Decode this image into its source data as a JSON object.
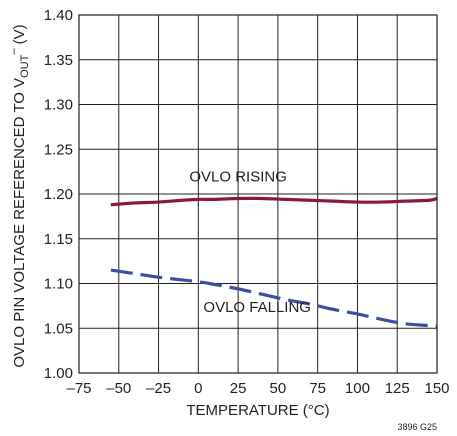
{
  "chart_data": {
    "type": "line",
    "title": "",
    "xlabel": "TEMPERATURE (°C)",
    "ylabel": {
      "prefix": "OVLO PIN VOLTAGE REFERENCED TO V",
      "subscript": "OUT",
      "superscript": "–",
      "suffix": " (V)"
    },
    "xlim": [
      -75,
      150
    ],
    "ylim": [
      1.0,
      1.4
    ],
    "x_ticks": [
      -75,
      -50,
      -25,
      0,
      25,
      50,
      75,
      100,
      125,
      150
    ],
    "x_tick_labels": [
      "–75",
      "–50",
      "–25",
      "0",
      "25",
      "50",
      "75",
      "100",
      "125",
      "150"
    ],
    "y_ticks": [
      1.0,
      1.05,
      1.1,
      1.15,
      1.2,
      1.25,
      1.3,
      1.35,
      1.4
    ],
    "y_tick_labels": [
      "1.00",
      "1.05",
      "1.10",
      "1.15",
      "1.20",
      "1.25",
      "1.30",
      "1.35",
      "1.40"
    ],
    "grid": true,
    "series": [
      {
        "name": "OVLO RISING",
        "color": "#8b1a3a",
        "dash": "solid",
        "x": [
          -55,
          -40,
          -25,
          -10,
          0,
          10,
          25,
          40,
          55,
          70,
          85,
          100,
          115,
          130,
          145,
          150
        ],
        "y": [
          1.188,
          1.19,
          1.191,
          1.193,
          1.194,
          1.194,
          1.195,
          1.195,
          1.194,
          1.193,
          1.192,
          1.191,
          1.191,
          1.192,
          1.193,
          1.195
        ]
      },
      {
        "name": "OVLO FALLING",
        "color": "#3a50a0",
        "dash": "dashed",
        "x": [
          -55,
          -40,
          -25,
          -10,
          0,
          10,
          25,
          40,
          55,
          70,
          85,
          100,
          115,
          130,
          145,
          150
        ],
        "y": [
          1.115,
          1.111,
          1.107,
          1.104,
          1.102,
          1.099,
          1.094,
          1.088,
          1.082,
          1.077,
          1.071,
          1.066,
          1.06,
          1.055,
          1.053,
          1.052
        ]
      }
    ],
    "annotations": [
      {
        "text": "OVLO RISING",
        "x": 25,
        "y": 1.214
      },
      {
        "text": "OVLO FALLING",
        "x": 37,
        "y": 1.068
      }
    ],
    "figure_code": "3896 G25"
  }
}
